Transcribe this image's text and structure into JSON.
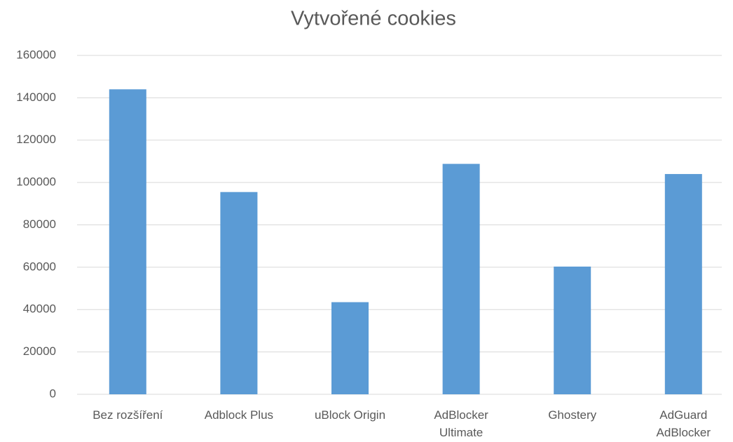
{
  "chart_data": {
    "type": "bar",
    "title": "Vytvořené cookies",
    "categories": [
      "Bez rozšíření",
      "Adblock Plus",
      "uBlock Origin",
      "AdBlocker Ultimate",
      "Ghostery",
      "AdGuard AdBlocker"
    ],
    "values": [
      144000,
      95500,
      43500,
      108800,
      60300,
      104000
    ],
    "color": "#5b9bd5",
    "ylim": [
      0,
      160000
    ],
    "yticks": [
      0,
      20000,
      40000,
      60000,
      80000,
      100000,
      120000,
      140000,
      160000
    ],
    "grid": true
  }
}
